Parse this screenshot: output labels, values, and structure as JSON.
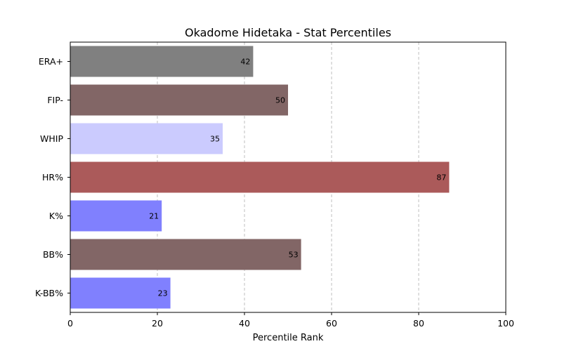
{
  "chart_data": {
    "type": "bar",
    "orientation": "horizontal",
    "title": "Okadome Hidetaka - Stat Percentiles",
    "xlabel": "Percentile Rank",
    "ylabel": "",
    "xlim": [
      0,
      100
    ],
    "x_ticks": [
      0,
      20,
      40,
      60,
      80,
      100
    ],
    "grid": "x-axis, dashed",
    "categories": [
      "ERA+",
      "FIP-",
      "WHIP",
      "HR%",
      "K%",
      "BB%",
      "K-BB%"
    ],
    "values": [
      42,
      50,
      35,
      87,
      21,
      53,
      23
    ],
    "bar_colors": [
      "#808080",
      "#826666",
      "#cbcbfe",
      "#ab5a5a",
      "#8080fe",
      "#826666",
      "#8080fe"
    ]
  }
}
